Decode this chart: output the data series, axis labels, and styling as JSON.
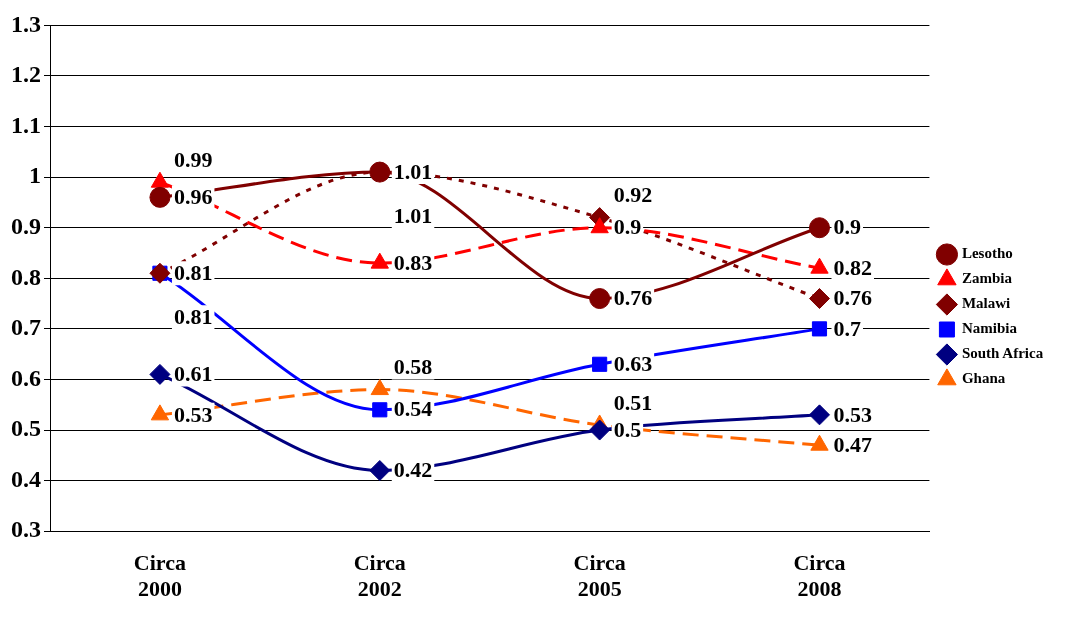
{
  "chart_data": {
    "type": "line",
    "categories": [
      "Circa 2000",
      "Circa 2002",
      "Circa 2005",
      "Circa 2008"
    ],
    "series": [
      {
        "name": "Lesotho",
        "color": "#800000",
        "values": [
          0.96,
          1.01,
          0.76,
          0.9
        ],
        "marker": "circle",
        "line_style": "solid"
      },
      {
        "name": "Zambia",
        "color": "#ff0000",
        "values": [
          0.99,
          0.83,
          0.9,
          0.82
        ],
        "marker": "triangle",
        "line_style": "dashed"
      },
      {
        "name": "Malawi",
        "color": "#800000",
        "values": [
          0.81,
          1.01,
          0.92,
          0.76
        ],
        "marker": "diamond",
        "line_style": "dotted"
      },
      {
        "name": "Namibia",
        "color": "#0000ff",
        "values": [
          0.81,
          0.54,
          0.63,
          0.7
        ],
        "marker": "square",
        "line_style": "solid"
      },
      {
        "name": "South Africa",
        "color": "#000080",
        "values": [
          0.61,
          0.42,
          0.5,
          0.53
        ],
        "marker": "diamond",
        "line_style": "solid"
      },
      {
        "name": "Ghana",
        "color": "#ff6600",
        "values": [
          0.53,
          0.58,
          0.51,
          0.47
        ],
        "marker": "triangle",
        "line_style": "dashed"
      }
    ],
    "ylim": [
      0.3,
      1.3
    ],
    "yticks": [
      0.3,
      0.4,
      0.5,
      0.6,
      0.7,
      0.8,
      0.9,
      1,
      1.1,
      1.2,
      1.3
    ],
    "grid": "y",
    "legend": "right",
    "data_labels": true
  }
}
